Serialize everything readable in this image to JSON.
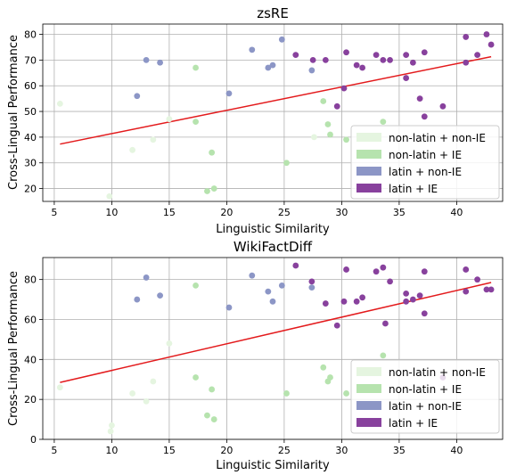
{
  "chart_data": [
    {
      "type": "scatter",
      "title": "zsRE",
      "xlabel": "Linguistic Similarity",
      "ylabel": "Cross-Lingual Performance",
      "xlim": [
        4,
        44
      ],
      "ylim": [
        15,
        84
      ],
      "xticks": [
        5,
        10,
        15,
        20,
        25,
        30,
        35,
        40
      ],
      "yticks": [
        20,
        30,
        40,
        50,
        60,
        70,
        80
      ],
      "grid": true,
      "legend_position": "bottom-right",
      "series": [
        {
          "name": "non-latin + non-IE",
          "color": "#e5f5e0",
          "points": [
            [
              5.5,
              53
            ],
            [
              9.8,
              17
            ],
            [
              11.8,
              35
            ],
            [
              13.6,
              39
            ],
            [
              15.0,
              47
            ],
            [
              27.6,
              40
            ],
            [
              33.0,
              40
            ]
          ]
        },
        {
          "name": "non-latin + IE",
          "color": "#b6e3ae",
          "points": [
            [
              17.3,
              67
            ],
            [
              17.3,
              46
            ],
            [
              18.3,
              19
            ],
            [
              18.7,
              34
            ],
            [
              18.9,
              20
            ],
            [
              25.2,
              30
            ],
            [
              28.4,
              54
            ],
            [
              28.8,
              45
            ],
            [
              29.0,
              41
            ],
            [
              30.4,
              39
            ],
            [
              33.6,
              46
            ]
          ]
        },
        {
          "name": "latin + non-IE",
          "color": "#8c96c6",
          "points": [
            [
              12.2,
              56
            ],
            [
              13.0,
              70
            ],
            [
              14.2,
              69
            ],
            [
              20.2,
              57
            ],
            [
              22.2,
              74
            ],
            [
              23.6,
              67
            ],
            [
              24.0,
              68
            ],
            [
              24.8,
              78
            ],
            [
              27.4,
              66
            ]
          ]
        },
        {
          "name": "latin + IE",
          "color": "#88419d",
          "points": [
            [
              26.0,
              72
            ],
            [
              27.5,
              70
            ],
            [
              28.6,
              70
            ],
            [
              29.6,
              52
            ],
            [
              30.2,
              59
            ],
            [
              30.4,
              73
            ],
            [
              31.3,
              68
            ],
            [
              31.8,
              67
            ],
            [
              33.0,
              72
            ],
            [
              33.6,
              70
            ],
            [
              34.2,
              70
            ],
            [
              35.6,
              63
            ],
            [
              35.6,
              72
            ],
            [
              36.2,
              69
            ],
            [
              36.8,
              55
            ],
            [
              37.2,
              73
            ],
            [
              37.2,
              48
            ],
            [
              38.8,
              52
            ],
            [
              40.8,
              79
            ],
            [
              40.8,
              69
            ],
            [
              41.8,
              72
            ],
            [
              42.6,
              80
            ],
            [
              43.0,
              76
            ]
          ]
        }
      ],
      "trend": {
        "color": "#e31a1c",
        "x": [
          5.5,
          43.0
        ],
        "y": [
          37.3,
          71.3
        ]
      }
    },
    {
      "type": "scatter",
      "title": "WikiFactDiff",
      "xlabel": "Linguistic Similarity",
      "ylabel": "Cross-Lingual Performance",
      "xlim": [
        4,
        44
      ],
      "ylim": [
        0,
        91
      ],
      "xticks": [
        5,
        10,
        15,
        20,
        25,
        30,
        35,
        40
      ],
      "yticks": [
        0,
        20,
        40,
        60,
        80
      ],
      "grid": true,
      "legend_position": "bottom-right",
      "series": [
        {
          "name": "non-latin + non-IE",
          "color": "#e5f5e0",
          "points": [
            [
              5.5,
              26
            ],
            [
              9.9,
              4
            ],
            [
              10.0,
              7
            ],
            [
              11.8,
              23
            ],
            [
              13.0,
              19
            ],
            [
              13.6,
              29
            ],
            [
              15.0,
              48
            ]
          ]
        },
        {
          "name": "non-latin + IE",
          "color": "#b6e3ae",
          "points": [
            [
              17.3,
              77
            ],
            [
              17.3,
              31
            ],
            [
              18.3,
              12
            ],
            [
              18.7,
              25
            ],
            [
              18.9,
              10
            ],
            [
              25.2,
              23
            ],
            [
              28.4,
              36
            ],
            [
              28.8,
              29
            ],
            [
              29.0,
              31
            ],
            [
              30.4,
              23
            ],
            [
              33.6,
              42
            ]
          ]
        },
        {
          "name": "latin + non-IE",
          "color": "#8c96c6",
          "points": [
            [
              12.2,
              70
            ],
            [
              13.0,
              81
            ],
            [
              14.2,
              72
            ],
            [
              20.2,
              66
            ],
            [
              22.2,
              82
            ],
            [
              23.6,
              74
            ],
            [
              24.0,
              69
            ],
            [
              24.8,
              77
            ],
            [
              27.4,
              76
            ]
          ]
        },
        {
          "name": "latin + IE",
          "color": "#88419d",
          "points": [
            [
              26.0,
              87
            ],
            [
              27.4,
              79
            ],
            [
              28.6,
              68
            ],
            [
              29.6,
              57
            ],
            [
              30.2,
              69
            ],
            [
              30.4,
              85
            ],
            [
              31.3,
              69
            ],
            [
              31.8,
              71
            ],
            [
              33.0,
              84
            ],
            [
              33.6,
              86
            ],
            [
              33.8,
              58
            ],
            [
              34.2,
              79
            ],
            [
              35.6,
              73
            ],
            [
              35.6,
              69
            ],
            [
              36.2,
              70
            ],
            [
              36.8,
              72
            ],
            [
              37.2,
              84
            ],
            [
              37.2,
              63
            ],
            [
              38.8,
              31
            ],
            [
              40.8,
              85
            ],
            [
              40.8,
              74
            ],
            [
              41.8,
              80
            ],
            [
              42.6,
              75
            ],
            [
              43.0,
              75
            ]
          ]
        }
      ],
      "trend": {
        "color": "#e31a1c",
        "x": [
          5.5,
          43.0
        ],
        "y": [
          28.5,
          78.5
        ]
      }
    }
  ]
}
